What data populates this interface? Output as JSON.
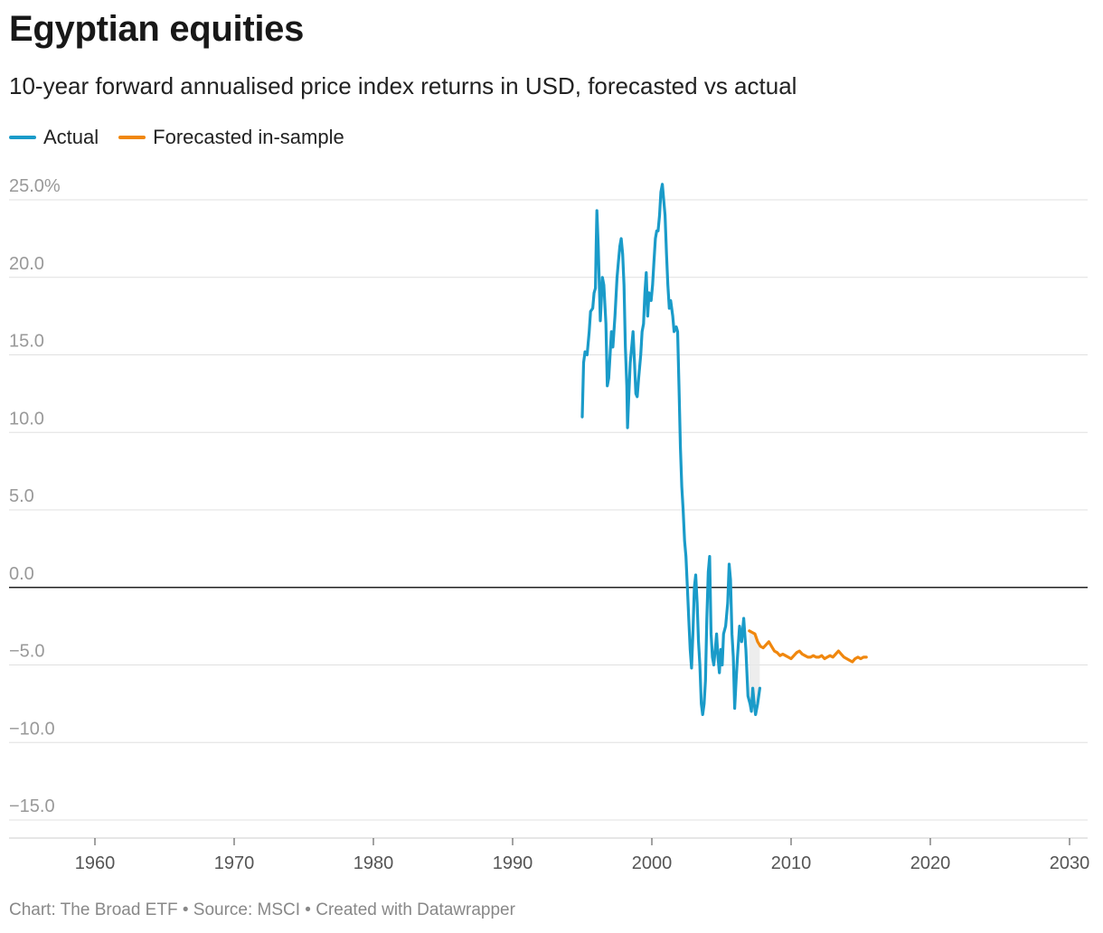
{
  "chart_data": {
    "type": "line",
    "title": "Egyptian equities",
    "subtitle": "10-year forward annualised price index returns in USD, forecasted vs actual",
    "footer": "Chart: The Broad ETF • Source: MSCI • Created with Datawrapper",
    "xlim": [
      1955,
      2031
    ],
    "ylim": [
      -15.5,
      25.5
    ],
    "x_ticks": [
      1960,
      1970,
      1980,
      1990,
      2000,
      2010,
      2020,
      2030
    ],
    "y_ticks": [
      {
        "value": 25,
        "label": "25.0%"
      },
      {
        "value": 20,
        "label": "20.0"
      },
      {
        "value": 15,
        "label": "15.0"
      },
      {
        "value": 10,
        "label": "10.0"
      },
      {
        "value": 5,
        "label": "5.0"
      },
      {
        "value": 0,
        "label": "0.0"
      },
      {
        "value": -5,
        "label": "−5.0"
      },
      {
        "value": -10,
        "label": "−10.0"
      },
      {
        "value": -15,
        "label": "−15.0"
      }
    ],
    "series": [
      {
        "name": "Actual",
        "color": "#1a9bc9",
        "points": [
          [
            1995.0,
            11.0
          ],
          [
            1995.1,
            14.5
          ],
          [
            1995.2,
            15.2
          ],
          [
            1995.35,
            15.0
          ],
          [
            1995.5,
            16.5
          ],
          [
            1995.6,
            17.8
          ],
          [
            1995.75,
            18.0
          ],
          [
            1995.85,
            19.0
          ],
          [
            1995.95,
            19.3
          ],
          [
            1996.0,
            22.0
          ],
          [
            1996.05,
            24.3
          ],
          [
            1996.15,
            22.0
          ],
          [
            1996.3,
            17.2
          ],
          [
            1996.45,
            20.0
          ],
          [
            1996.55,
            19.5
          ],
          [
            1996.7,
            17.0
          ],
          [
            1996.8,
            13.0
          ],
          [
            1996.9,
            13.5
          ],
          [
            1997.0,
            15.0
          ],
          [
            1997.1,
            16.5
          ],
          [
            1997.2,
            15.5
          ],
          [
            1997.35,
            17.5
          ],
          [
            1997.5,
            20.0
          ],
          [
            1997.6,
            21.0
          ],
          [
            1997.7,
            22.0
          ],
          [
            1997.8,
            22.5
          ],
          [
            1997.9,
            21.5
          ],
          [
            1998.0,
            19.5
          ],
          [
            1998.1,
            15.5
          ],
          [
            1998.2,
            13.0
          ],
          [
            1998.25,
            10.3
          ],
          [
            1998.35,
            12.5
          ],
          [
            1998.45,
            14.5
          ],
          [
            1998.55,
            15.5
          ],
          [
            1998.65,
            16.5
          ],
          [
            1998.75,
            14.5
          ],
          [
            1998.85,
            12.5
          ],
          [
            1998.95,
            12.3
          ],
          [
            1999.05,
            13.5
          ],
          [
            1999.2,
            15.0
          ],
          [
            1999.3,
            16.5
          ],
          [
            1999.4,
            17.0
          ],
          [
            1999.5,
            19.0
          ],
          [
            1999.6,
            20.3
          ],
          [
            1999.7,
            17.5
          ],
          [
            1999.8,
            19.0
          ],
          [
            1999.95,
            18.5
          ],
          [
            2000.05,
            19.5
          ],
          [
            2000.15,
            21.0
          ],
          [
            2000.25,
            22.5
          ],
          [
            2000.35,
            23.0
          ],
          [
            2000.45,
            23.0
          ],
          [
            2000.55,
            24.0
          ],
          [
            2000.65,
            25.5
          ],
          [
            2000.75,
            26.0
          ],
          [
            2000.85,
            25.0
          ],
          [
            2000.95,
            24.0
          ],
          [
            2001.05,
            21.5
          ],
          [
            2001.15,
            19.5
          ],
          [
            2001.25,
            18.0
          ],
          [
            2001.35,
            18.5
          ],
          [
            2001.5,
            17.5
          ],
          [
            2001.6,
            16.5
          ],
          [
            2001.75,
            16.8
          ],
          [
            2001.85,
            16.5
          ],
          [
            2001.95,
            13.0
          ],
          [
            2002.05,
            9.0
          ],
          [
            2002.15,
            6.5
          ],
          [
            2002.25,
            5.0
          ],
          [
            2002.35,
            3.0
          ],
          [
            2002.45,
            2.0
          ],
          [
            2002.55,
            0.0
          ],
          [
            2002.65,
            -2.0
          ],
          [
            2002.75,
            -4.0
          ],
          [
            2002.85,
            -5.2
          ],
          [
            2002.95,
            -3.0
          ],
          [
            2003.05,
            0.0
          ],
          [
            2003.15,
            0.8
          ],
          [
            2003.25,
            -1.0
          ],
          [
            2003.35,
            -3.5
          ],
          [
            2003.45,
            -5.0
          ],
          [
            2003.55,
            -7.5
          ],
          [
            2003.65,
            -8.2
          ],
          [
            2003.75,
            -7.5
          ],
          [
            2003.85,
            -6.0
          ],
          [
            2003.95,
            -2.0
          ],
          [
            2004.05,
            1.0
          ],
          [
            2004.15,
            2.0
          ],
          [
            2004.25,
            -3.0
          ],
          [
            2004.35,
            -4.5
          ],
          [
            2004.45,
            -5.0
          ],
          [
            2004.55,
            -4.0
          ],
          [
            2004.65,
            -3.0
          ],
          [
            2004.75,
            -4.5
          ],
          [
            2004.85,
            -5.5
          ],
          [
            2004.95,
            -4.0
          ],
          [
            2005.05,
            -5.0
          ],
          [
            2005.15,
            -3.0
          ],
          [
            2005.3,
            -2.5
          ],
          [
            2005.45,
            -1.0
          ],
          [
            2005.55,
            1.5
          ],
          [
            2005.65,
            0.5
          ],
          [
            2005.75,
            -3.0
          ],
          [
            2005.85,
            -4.5
          ],
          [
            2005.95,
            -7.8
          ],
          [
            2006.05,
            -6.0
          ],
          [
            2006.15,
            -4.5
          ],
          [
            2006.3,
            -2.5
          ],
          [
            2006.45,
            -3.5
          ],
          [
            2006.6,
            -2.0
          ],
          [
            2006.75,
            -4.0
          ],
          [
            2006.9,
            -7.0
          ],
          [
            2007.05,
            -7.5
          ],
          [
            2007.15,
            -8.0
          ],
          [
            2007.25,
            -6.5
          ],
          [
            2007.35,
            -7.5
          ],
          [
            2007.45,
            -8.2
          ],
          [
            2007.6,
            -7.5
          ],
          [
            2007.75,
            -6.5
          ]
        ]
      },
      {
        "name": "Forecasted in-sample",
        "color": "#f0870e",
        "points": [
          [
            2007.0,
            -2.8
          ],
          [
            2007.2,
            -2.9
          ],
          [
            2007.4,
            -3.0
          ],
          [
            2007.6,
            -3.5
          ],
          [
            2007.8,
            -3.8
          ],
          [
            2008.0,
            -3.9
          ],
          [
            2008.2,
            -3.7
          ],
          [
            2008.4,
            -3.5
          ],
          [
            2008.6,
            -3.8
          ],
          [
            2008.8,
            -4.1
          ],
          [
            2009.0,
            -4.2
          ],
          [
            2009.2,
            -4.4
          ],
          [
            2009.4,
            -4.3
          ],
          [
            2009.6,
            -4.4
          ],
          [
            2009.8,
            -4.5
          ],
          [
            2010.0,
            -4.6
          ],
          [
            2010.2,
            -4.4
          ],
          [
            2010.4,
            -4.2
          ],
          [
            2010.6,
            -4.1
          ],
          [
            2010.8,
            -4.3
          ],
          [
            2011.0,
            -4.4
          ],
          [
            2011.2,
            -4.5
          ],
          [
            2011.4,
            -4.5
          ],
          [
            2011.6,
            -4.4
          ],
          [
            2011.8,
            -4.5
          ],
          [
            2012.0,
            -4.5
          ],
          [
            2012.2,
            -4.4
          ],
          [
            2012.4,
            -4.6
          ],
          [
            2012.6,
            -4.5
          ],
          [
            2012.8,
            -4.4
          ],
          [
            2013.0,
            -4.5
          ],
          [
            2013.2,
            -4.3
          ],
          [
            2013.4,
            -4.1
          ],
          [
            2013.6,
            -4.3
          ],
          [
            2013.8,
            -4.5
          ],
          [
            2014.0,
            -4.6
          ],
          [
            2014.2,
            -4.7
          ],
          [
            2014.4,
            -4.8
          ],
          [
            2014.6,
            -4.6
          ],
          [
            2014.8,
            -4.5
          ],
          [
            2015.0,
            -4.6
          ],
          [
            2015.2,
            -4.5
          ],
          [
            2015.4,
            -4.5
          ]
        ]
      }
    ]
  }
}
